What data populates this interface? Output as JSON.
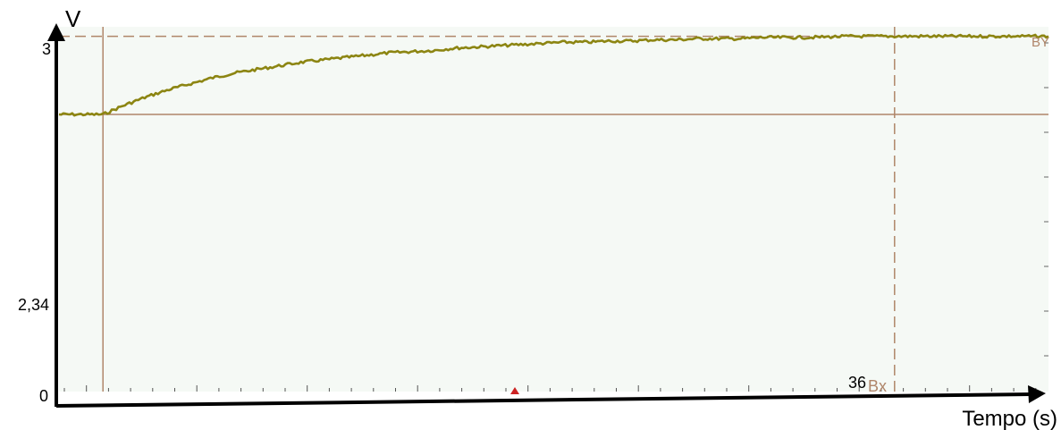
{
  "chart_data": {
    "type": "line",
    "ylabel": "V",
    "xlabel": "Tempo (s)",
    "y_tick_labels": [
      "3",
      "2,34",
      "0"
    ],
    "y_ticks": [
      3,
      2.34,
      0
    ],
    "cursor_label_x": "36",
    "cursor_marker_x": "Bx",
    "cursor_marker_y": "BY",
    "xlim": [
      -2,
      43
    ],
    "ylim": [
      0,
      3.08
    ],
    "grid": false,
    "colors": {
      "plot_background": "#f5f9f5",
      "trace": "#8c8512",
      "cursor": "#b0866a",
      "axis": "#000000",
      "marker": "#cc2222"
    },
    "series": [
      {
        "x": [
          -2,
          -1,
          0,
          1,
          2,
          3,
          4,
          5,
          6,
          7,
          8,
          9,
          10,
          11,
          12,
          13,
          14,
          15,
          16,
          17,
          18,
          19,
          20,
          21,
          22,
          23,
          24,
          25,
          26,
          27,
          28,
          29,
          30,
          31,
          32,
          33,
          34,
          35,
          36,
          37,
          38,
          39,
          40,
          41,
          42,
          43
        ],
        "y": [
          2.34,
          2.34,
          2.34,
          2.42,
          2.49,
          2.55,
          2.6,
          2.65,
          2.69,
          2.72,
          2.75,
          2.78,
          2.8,
          2.82,
          2.84,
          2.86,
          2.87,
          2.88,
          2.9,
          2.91,
          2.92,
          2.93,
          2.94,
          2.95,
          2.95,
          2.96,
          2.96,
          2.97,
          2.97,
          2.98,
          2.98,
          2.98,
          2.99,
          2.99,
          2.99,
          2.995,
          3.0,
          3.0,
          3.0,
          3.0,
          3.0,
          3.0,
          3.0,
          3.0,
          3.0,
          3.0
        ]
      }
    ]
  }
}
